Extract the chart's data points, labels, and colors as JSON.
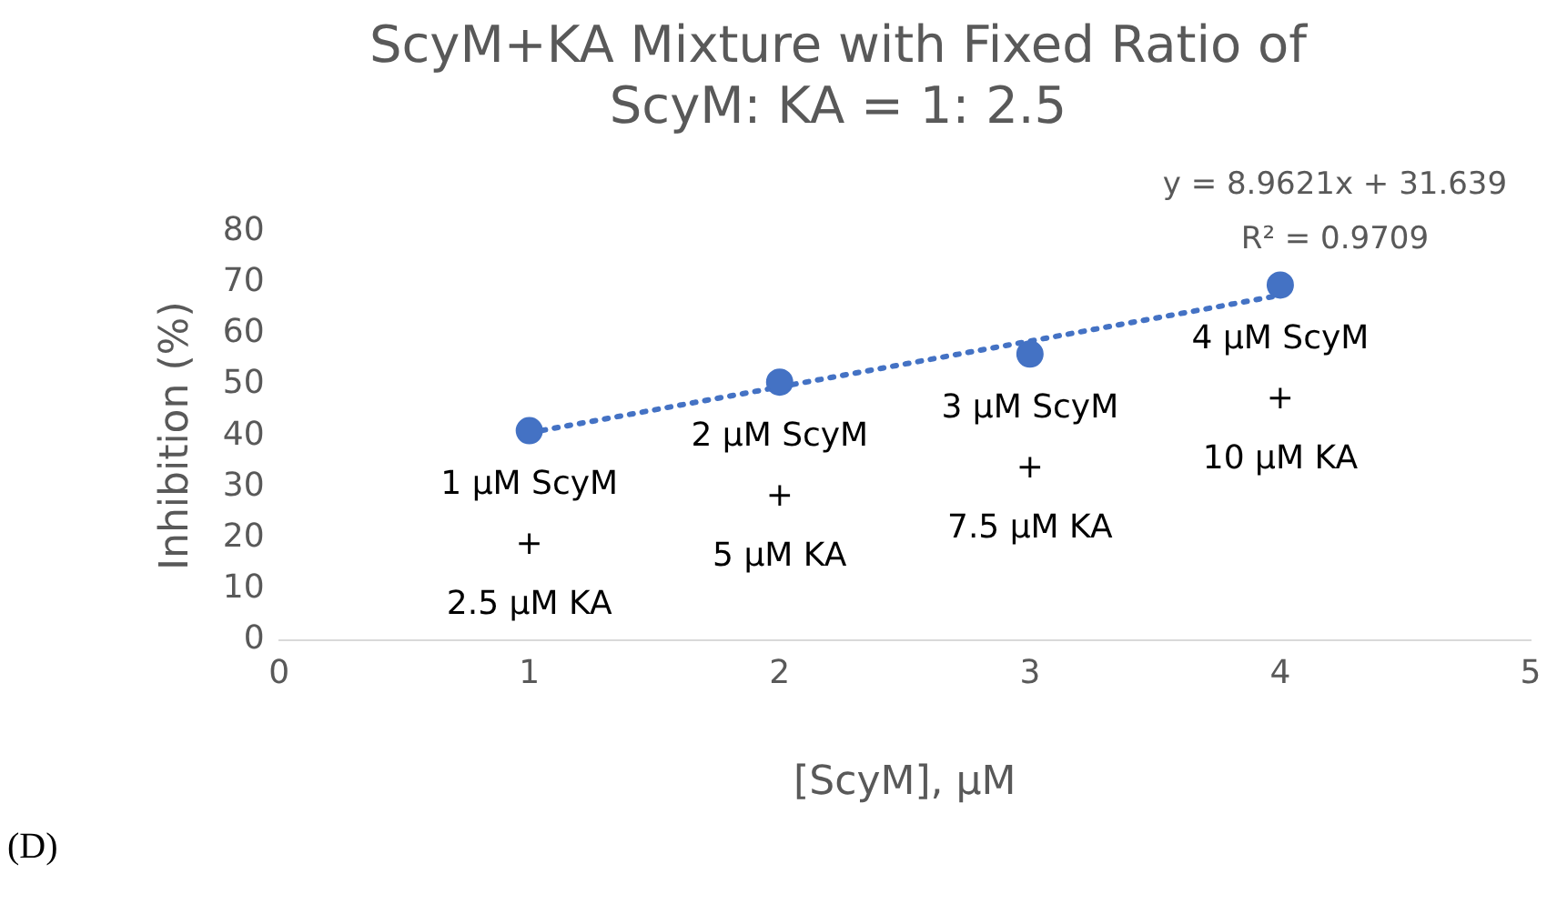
{
  "chart_data": {
    "type": "scatter",
    "title": [
      "ScyM+KA Mixture with Fixed Ratio of",
      "ScyM: KA = 1: 2.5"
    ],
    "xlabel": "[ScyM], μM",
    "ylabel": "Inhibition (%)",
    "x": [
      1,
      2,
      3,
      4
    ],
    "series": [
      {
        "color": "#4472c4",
        "values": [
          41,
          50.5,
          56,
          69.5
        ],
        "marker": "circle"
      },
      {
        "type": "line",
        "color": "#4472c4",
        "x": [
          1,
          4
        ],
        "values": [
          40.6,
          67.5
        ],
        "marker": "none",
        "line_style": "dotted"
      }
    ],
    "xlim": [
      0,
      5
    ],
    "xticks": [
      0,
      1,
      2,
      3,
      4,
      5
    ],
    "ylim": [
      0,
      80
    ],
    "yticks": [
      0,
      10,
      20,
      30,
      40,
      50,
      60,
      70,
      80
    ],
    "grid": false,
    "legend": false,
    "annotations": [
      "(D)",
      {
        "text": "1 μM ScyM\n+\n2.5 μM KA",
        "x": 1,
        "y": 41
      },
      {
        "text": "2 μM ScyM\n+\n5 μM KA",
        "x": 2,
        "y": 50.5
      },
      {
        "text": "3 μM ScyM\n+\n7.5 μM KA",
        "x": 3,
        "y": 56
      },
      {
        "text": "4 μM ScyM\n+\n10 μM KA",
        "x": 4,
        "y": 69.5
      },
      {
        "text": "y = 8.9621x + 31.639\nR² = 0.9709",
        "x": 4,
        "y": 67.5
      }
    ]
  }
}
